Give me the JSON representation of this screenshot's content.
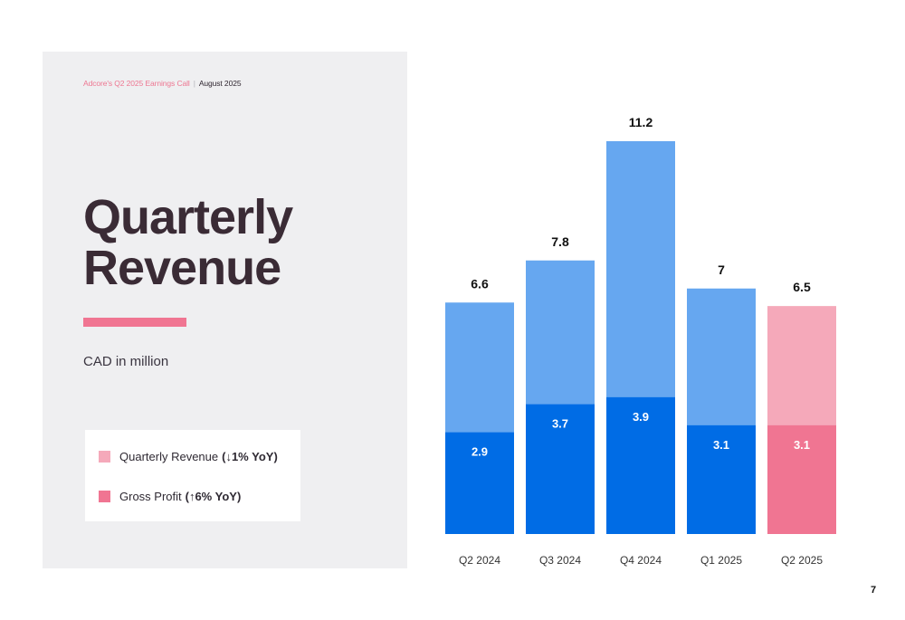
{
  "header": {
    "event": "Adcore's Q2 2025 Earnings Call",
    "separator": "|",
    "date": "August 2025"
  },
  "title": {
    "line1": "Quarterly",
    "line2": "Revenue"
  },
  "unit": "CAD in million",
  "legend": [
    {
      "label": "Quarterly Revenue",
      "change": "(↓1% YoY)",
      "color": "#f5a9ba"
    },
    {
      "label": "Gross Profit",
      "change": "(↑6% YoY)",
      "color": "#f07592"
    }
  ],
  "page_number": "7",
  "colors": {
    "revenue_light": "#66a7f0",
    "gross_profit_dark": "#006ce5",
    "highlight_revenue": "#f5a9ba",
    "highlight_profit": "#f07592"
  },
  "chart_data": {
    "type": "bar",
    "categories": [
      "Q2 2024",
      "Q3 2024",
      "Q4 2024",
      "Q1 2025",
      "Q2 2025"
    ],
    "series": [
      {
        "name": "Quarterly Revenue",
        "values": [
          6.6,
          7.8,
          11.2,
          7,
          6.5
        ]
      },
      {
        "name": "Gross Profit",
        "values": [
          2.9,
          3.7,
          3.9,
          3.1,
          3.1
        ]
      }
    ],
    "revenue_labels": [
      "6.6",
      "7.8",
      "11.2",
      "7",
      "6.5"
    ],
    "profit_labels": [
      "2.9",
      "3.7",
      "3.9",
      "3.1",
      "3.1"
    ],
    "highlight_index": 4,
    "ylim": [
      0,
      12
    ],
    "grid": false
  }
}
